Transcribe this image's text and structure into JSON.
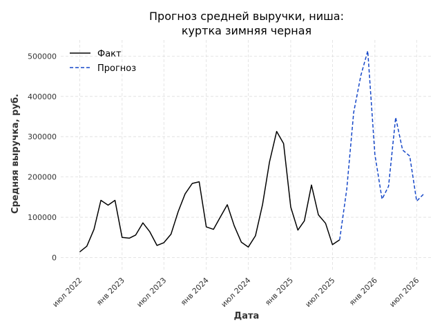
{
  "chart_data": {
    "type": "line",
    "title_lines": [
      "Прогноз средней выручки, ниша:",
      "куртка зимняя черная"
    ],
    "xlabel": "Дата",
    "ylabel": "Средняя выручка, руб.",
    "xlim": [
      "2022-04-10",
      "2026-09-01"
    ],
    "ylim": [
      -30000,
      540000
    ],
    "yticks": [
      0,
      100000,
      200000,
      300000,
      400000,
      500000
    ],
    "xticks": [
      {
        "date": "2022-07-01",
        "label": "июл 2022"
      },
      {
        "date": "2023-01-01",
        "label": "янв 2023"
      },
      {
        "date": "2023-07-01",
        "label": "июл 2023"
      },
      {
        "date": "2024-01-01",
        "label": "янв 2024"
      },
      {
        "date": "2024-07-01",
        "label": "июл 2024"
      },
      {
        "date": "2025-01-01",
        "label": "янв 2025"
      },
      {
        "date": "2025-07-01",
        "label": "июл 2025"
      },
      {
        "date": "2026-01-01",
        "label": "янв 2026"
      },
      {
        "date": "2026-07-01",
        "label": "июл 2026"
      }
    ],
    "grid": true,
    "legend_position": "top-left",
    "series": [
      {
        "name": "Факт",
        "color": "#000000",
        "style": "solid",
        "x": [
          "2022-07-01",
          "2022-08-01",
          "2022-09-01",
          "2022-10-01",
          "2022-11-01",
          "2022-12-01",
          "2023-01-01",
          "2023-02-01",
          "2023-03-01",
          "2023-04-01",
          "2023-05-01",
          "2023-06-01",
          "2023-07-01",
          "2023-08-01",
          "2023-09-01",
          "2023-10-01",
          "2023-11-01",
          "2023-12-01",
          "2024-01-01",
          "2024-02-01",
          "2024-03-01",
          "2024-04-01",
          "2024-05-01",
          "2024-06-01",
          "2024-07-01",
          "2024-08-01",
          "2024-09-01",
          "2024-10-01",
          "2024-11-01",
          "2024-12-01",
          "2025-01-01",
          "2025-02-01",
          "2025-03-01",
          "2025-04-01",
          "2025-05-01",
          "2025-06-01",
          "2025-07-01",
          "2025-08-01"
        ],
        "y": [
          14000,
          28000,
          70000,
          142000,
          130000,
          142000,
          50000,
          48000,
          56000,
          86000,
          64000,
          30000,
          37000,
          58000,
          114000,
          158000,
          184000,
          188000,
          76000,
          70000,
          100000,
          131000,
          79000,
          38000,
          26000,
          54000,
          132000,
          237000,
          313000,
          283000,
          125000,
          68000,
          91000,
          180000,
          106000,
          85000,
          32000,
          44000
        ]
      },
      {
        "name": "Прогноз",
        "color": "#1446c8",
        "style": "dashed",
        "x": [
          "2025-08-01",
          "2025-09-01",
          "2025-10-01",
          "2025-11-01",
          "2025-12-01",
          "2026-01-01",
          "2026-02-01",
          "2026-03-01",
          "2026-04-01",
          "2026-05-01",
          "2026-06-01",
          "2026-07-01",
          "2026-08-01"
        ],
        "y": [
          44000,
          170000,
          360000,
          452000,
          513000,
          256000,
          145000,
          177000,
          348000,
          267000,
          252000,
          140000,
          158000
        ]
      }
    ]
  }
}
